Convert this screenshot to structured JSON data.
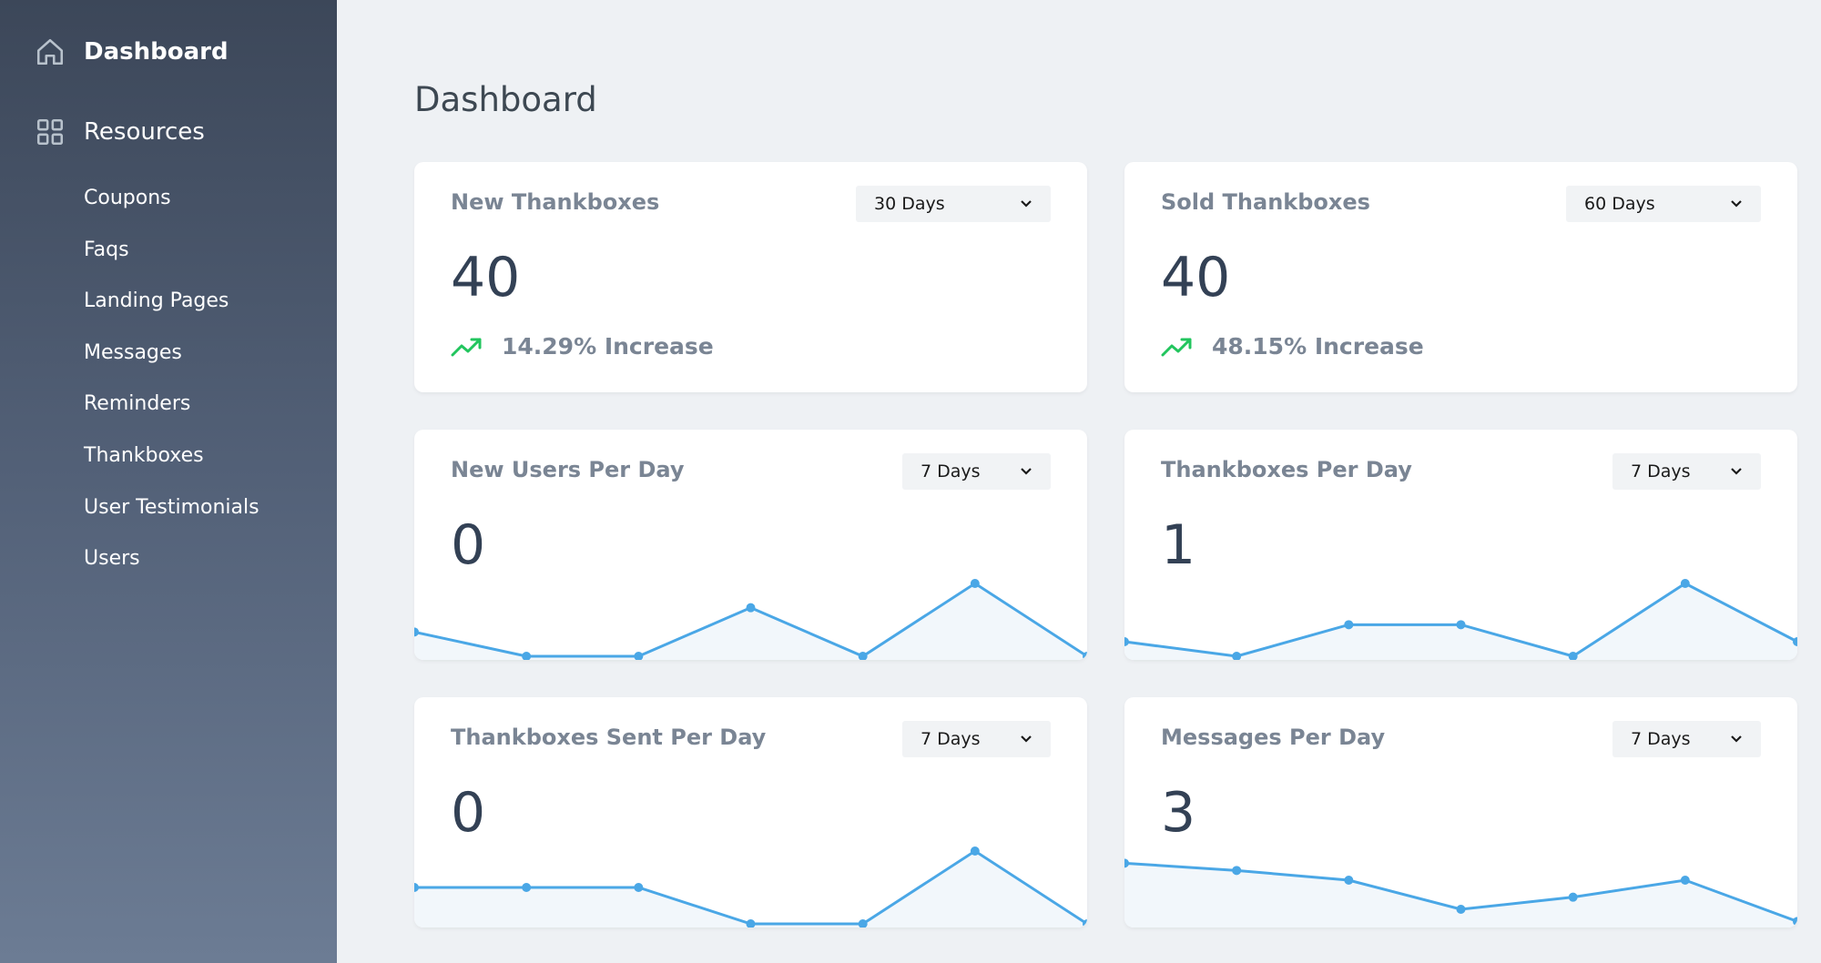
{
  "sidebar": {
    "dashboard_label": "Dashboard",
    "resources_label": "Resources",
    "items": [
      {
        "label": "Coupons"
      },
      {
        "label": "Faqs"
      },
      {
        "label": "Landing Pages"
      },
      {
        "label": "Messages"
      },
      {
        "label": "Reminders"
      },
      {
        "label": "Thankboxes"
      },
      {
        "label": "User Testimonials"
      },
      {
        "label": "Users"
      }
    ]
  },
  "page": {
    "title": "Dashboard"
  },
  "colors": {
    "accent": "#4aa7e6",
    "trend_up": "#22c55e",
    "sidebar_top": "#3c4759",
    "sidebar_bottom": "#6c7c94"
  },
  "cards": [
    {
      "title": "New Thankboxes",
      "range": "30 Days",
      "value": "40",
      "trend": "14.29% Increase"
    },
    {
      "title": "Sold Thankboxes",
      "range": "60 Days",
      "value": "40",
      "trend": "48.15% Increase"
    },
    {
      "title": "New Users Per Day",
      "range": "7 Days",
      "value": "0",
      "series": [
        1,
        0,
        0,
        2,
        0,
        3,
        0
      ]
    },
    {
      "title": "Thankboxes Per Day",
      "range": "7 Days",
      "value": "1",
      "series": [
        0.6,
        0,
        1.3,
        1.3,
        0,
        3,
        0.6
      ]
    },
    {
      "title": "Thankboxes Sent Per Day",
      "range": "7 Days",
      "value": "0",
      "series": [
        1.5,
        1.5,
        1.5,
        0,
        0,
        3,
        0
      ]
    },
    {
      "title": "Messages Per Day",
      "range": "7 Days",
      "value": "3",
      "series": [
        2.5,
        2.2,
        1.8,
        0.6,
        1.1,
        1.8,
        0.1
      ]
    }
  ]
}
